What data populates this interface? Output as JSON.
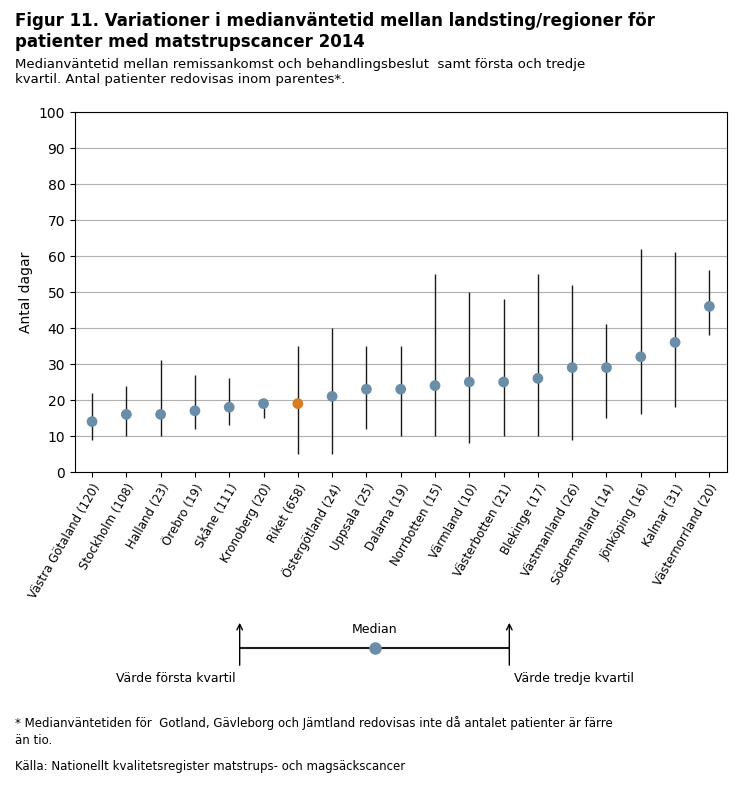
{
  "chart_data": {
    "type": "range",
    "title": "Figur 11. Variationer i medianväntetid mellan landsting/regioner för\npatienter med matstrupscancer 2014",
    "subtitle": "Medianväntetid mellan remissankomst och behandlingsbeslut  samt första och tredje\nkvartil. Antal patienter redovisas inom parentes*.",
    "y_label": "Antal dagar",
    "categories": [
      "Västra Götaland (120)",
      "Stockholm (108)",
      "Halland (23)",
      "Örebro (19)",
      "Skåne (111)",
      "Kronoberg (20)",
      "Riket (658)",
      "Östergötland (24)",
      "Uppsala (25)",
      "Dalarna (19)",
      "Norrbotten (15)",
      "Värmland (10)",
      "Västerbotten (21)",
      "Blekinge (17)",
      "Västmanland (26)",
      "Södermanland (14)",
      "Jönköping (16)",
      "Kalmar (31)",
      "Västernorrland (20)"
    ],
    "values": [
      14,
      16,
      16,
      17,
      18,
      19,
      19,
      21,
      23,
      23,
      24,
      25,
      25,
      26,
      29,
      29,
      32,
      36,
      46
    ],
    "lower": [
      9,
      10,
      10,
      12,
      13,
      15,
      5,
      5,
      12,
      10,
      10,
      8,
      10,
      10,
      9,
      15,
      16,
      18,
      38
    ],
    "upper": [
      22,
      24,
      31,
      27,
      26,
      19,
      35,
      40,
      35,
      35,
      55,
      50,
      48,
      55,
      52,
      41,
      62,
      61,
      56
    ],
    "color": "#1a1a1a",
    "colors": [
      "#6b8ea8",
      "#6b8ea8",
      "#6b8ea8",
      "#6b8ea8",
      "#6b8ea8",
      "#6b8ea8",
      "#d97b20",
      "#6b8ea8",
      "#6b8ea8",
      "#6b8ea8",
      "#6b8ea8",
      "#6b8ea8",
      "#6b8ea8",
      "#6b8ea8",
      "#6b8ea8",
      "#6b8ea8",
      "#6b8ea8",
      "#6b8ea8",
      "#6b8ea8"
    ],
    "ylim": [
      0,
      100
    ],
    "yticks": [
      0,
      10,
      20,
      30,
      40,
      50,
      60,
      70,
      80,
      90,
      100
    ],
    "grid": true,
    "key_labels": {
      "median": "Median",
      "lower": "Värde första kvartil",
      "upper": "Värde tredje kvartil"
    },
    "notes": [
      "* Medianväntetiden för  Gotland, Gävleborg och Jämtland redovisas inte då antalet patienter är färre",
      "än tio.",
      "Källa: Nationellt kvalitetsregister matstrups- och magsäckscancer"
    ]
  }
}
